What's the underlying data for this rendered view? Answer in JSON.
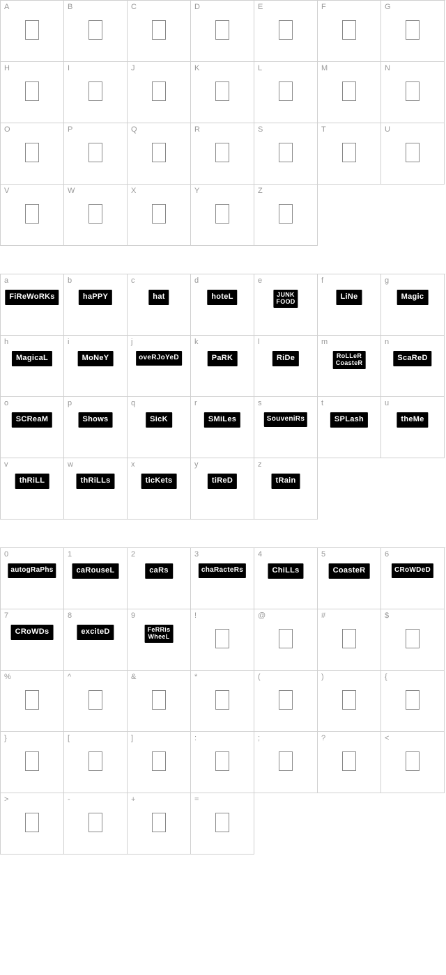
{
  "sections": [
    {
      "id": "uppercase",
      "cells": [
        {
          "label": "A",
          "type": "empty"
        },
        {
          "label": "B",
          "type": "empty"
        },
        {
          "label": "C",
          "type": "empty"
        },
        {
          "label": "D",
          "type": "empty"
        },
        {
          "label": "E",
          "type": "empty"
        },
        {
          "label": "F",
          "type": "empty"
        },
        {
          "label": "G",
          "type": "empty"
        },
        {
          "label": "H",
          "type": "empty"
        },
        {
          "label": "I",
          "type": "empty"
        },
        {
          "label": "J",
          "type": "empty"
        },
        {
          "label": "K",
          "type": "empty"
        },
        {
          "label": "L",
          "type": "empty"
        },
        {
          "label": "M",
          "type": "empty"
        },
        {
          "label": "N",
          "type": "empty"
        },
        {
          "label": "O",
          "type": "empty"
        },
        {
          "label": "P",
          "type": "empty"
        },
        {
          "label": "Q",
          "type": "empty"
        },
        {
          "label": "R",
          "type": "empty"
        },
        {
          "label": "S",
          "type": "empty"
        },
        {
          "label": "T",
          "type": "empty"
        },
        {
          "label": "U",
          "type": "empty"
        },
        {
          "label": "V",
          "type": "empty"
        },
        {
          "label": "W",
          "type": "empty"
        },
        {
          "label": "X",
          "type": "empty"
        },
        {
          "label": "Y",
          "type": "empty"
        },
        {
          "label": "Z",
          "type": "empty"
        }
      ]
    },
    {
      "id": "lowercase",
      "cells": [
        {
          "label": "a",
          "type": "word",
          "word": "FiReWoRKs"
        },
        {
          "label": "b",
          "type": "word",
          "word": "haPPY"
        },
        {
          "label": "c",
          "type": "word",
          "word": "hat"
        },
        {
          "label": "d",
          "type": "word",
          "word": "hoteL"
        },
        {
          "label": "e",
          "type": "word",
          "word": "JUNK\nFOOD",
          "cls": "two-line"
        },
        {
          "label": "f",
          "type": "word",
          "word": "LiNe"
        },
        {
          "label": "g",
          "type": "word",
          "word": "Magic"
        },
        {
          "label": "h",
          "type": "word",
          "word": "MagicaL"
        },
        {
          "label": "i",
          "type": "word",
          "word": "MoNeY"
        },
        {
          "label": "j",
          "type": "word",
          "word": "oveRJoYeD",
          "cls": "wide"
        },
        {
          "label": "k",
          "type": "word",
          "word": "PaRK"
        },
        {
          "label": "l",
          "type": "word",
          "word": "RiDe"
        },
        {
          "label": "m",
          "type": "word",
          "word": "RoLLeR\nCoasteR",
          "cls": "two-line"
        },
        {
          "label": "n",
          "type": "word",
          "word": "ScaReD"
        },
        {
          "label": "o",
          "type": "word",
          "word": "SCReaM"
        },
        {
          "label": "p",
          "type": "word",
          "word": "Shows"
        },
        {
          "label": "q",
          "type": "word",
          "word": "SicK"
        },
        {
          "label": "r",
          "type": "word",
          "word": "SMiLes"
        },
        {
          "label": "s",
          "type": "word",
          "word": "SouveniRs",
          "cls": "wide"
        },
        {
          "label": "t",
          "type": "word",
          "word": "SPLash"
        },
        {
          "label": "u",
          "type": "word",
          "word": "theMe"
        },
        {
          "label": "v",
          "type": "word",
          "word": "thRiLL"
        },
        {
          "label": "w",
          "type": "word",
          "word": "thRiLLs"
        },
        {
          "label": "x",
          "type": "word",
          "word": "ticKets"
        },
        {
          "label": "y",
          "type": "word",
          "word": "tiReD"
        },
        {
          "label": "z",
          "type": "word",
          "word": "tRain"
        }
      ]
    },
    {
      "id": "numbers-symbols",
      "cells": [
        {
          "label": "0",
          "type": "word",
          "word": "autogRaPhs",
          "cls": "wide"
        },
        {
          "label": "1",
          "type": "word",
          "word": "caRouseL"
        },
        {
          "label": "2",
          "type": "word",
          "word": "caRs"
        },
        {
          "label": "3",
          "type": "word",
          "word": "chaRacteRs",
          "cls": "wide"
        },
        {
          "label": "4",
          "type": "word",
          "word": "ChiLLs"
        },
        {
          "label": "5",
          "type": "word",
          "word": "CoasteR"
        },
        {
          "label": "6",
          "type": "word",
          "word": "CRoWDeD",
          "cls": "wide"
        },
        {
          "label": "7",
          "type": "word",
          "word": "CRoWDs"
        },
        {
          "label": "8",
          "type": "word",
          "word": "exciteD"
        },
        {
          "label": "9",
          "type": "word",
          "word": "FeRRis\nWheeL",
          "cls": "two-line"
        },
        {
          "label": "!",
          "type": "empty"
        },
        {
          "label": "@",
          "type": "empty"
        },
        {
          "label": "#",
          "type": "empty"
        },
        {
          "label": "$",
          "type": "empty"
        },
        {
          "label": "%",
          "type": "empty"
        },
        {
          "label": "^",
          "type": "empty"
        },
        {
          "label": "&",
          "type": "empty"
        },
        {
          "label": "*",
          "type": "empty"
        },
        {
          "label": "(",
          "type": "empty"
        },
        {
          "label": ")",
          "type": "empty"
        },
        {
          "label": "{",
          "type": "empty"
        },
        {
          "label": "}",
          "type": "empty"
        },
        {
          "label": "[",
          "type": "empty"
        },
        {
          "label": "]",
          "type": "empty"
        },
        {
          "label": ":",
          "type": "empty"
        },
        {
          "label": ";",
          "type": "empty"
        },
        {
          "label": "?",
          "type": "empty"
        },
        {
          "label": "<",
          "type": "empty"
        },
        {
          "label": ">",
          "type": "empty"
        },
        {
          "label": "-",
          "type": "empty"
        },
        {
          "label": "+",
          "type": "empty"
        },
        {
          "label": "=",
          "type": "empty"
        }
      ]
    }
  ]
}
